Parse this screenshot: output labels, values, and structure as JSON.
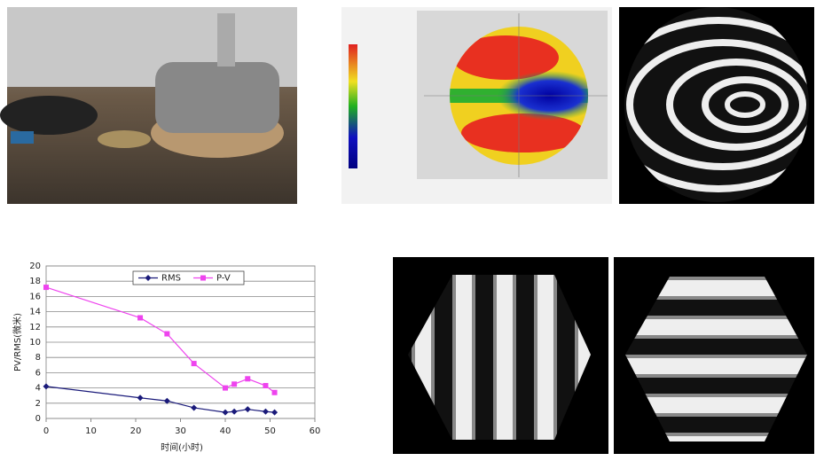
{
  "chart_data": {
    "type": "line",
    "x_label": "时间(小时)",
    "y_label": "PV/RMS(微米)",
    "x": [
      0,
      21,
      27,
      33,
      40,
      42,
      45,
      49,
      51
    ],
    "series": [
      {
        "name": "RMS",
        "color": "#1a1a7a",
        "marker": "diamond",
        "values": [
          4.2,
          2.7,
          2.3,
          1.4,
          0.8,
          0.9,
          1.2,
          0.9,
          0.8
        ]
      },
      {
        "name": "P-V",
        "color": "#ee44ee",
        "marker": "square",
        "values": [
          17.2,
          13.2,
          11.1,
          7.2,
          4.0,
          4.5,
          5.2,
          4.3,
          3.4
        ]
      }
    ],
    "xlim": [
      0,
      60
    ],
    "xticks": [
      0,
      10,
      20,
      30,
      40,
      50,
      60
    ],
    "ylim": [
      0,
      20
    ],
    "yticks": [
      0,
      2,
      4,
      6,
      8,
      10,
      12,
      14,
      16,
      18,
      20
    ],
    "grid": true,
    "legend": "top"
  }
}
